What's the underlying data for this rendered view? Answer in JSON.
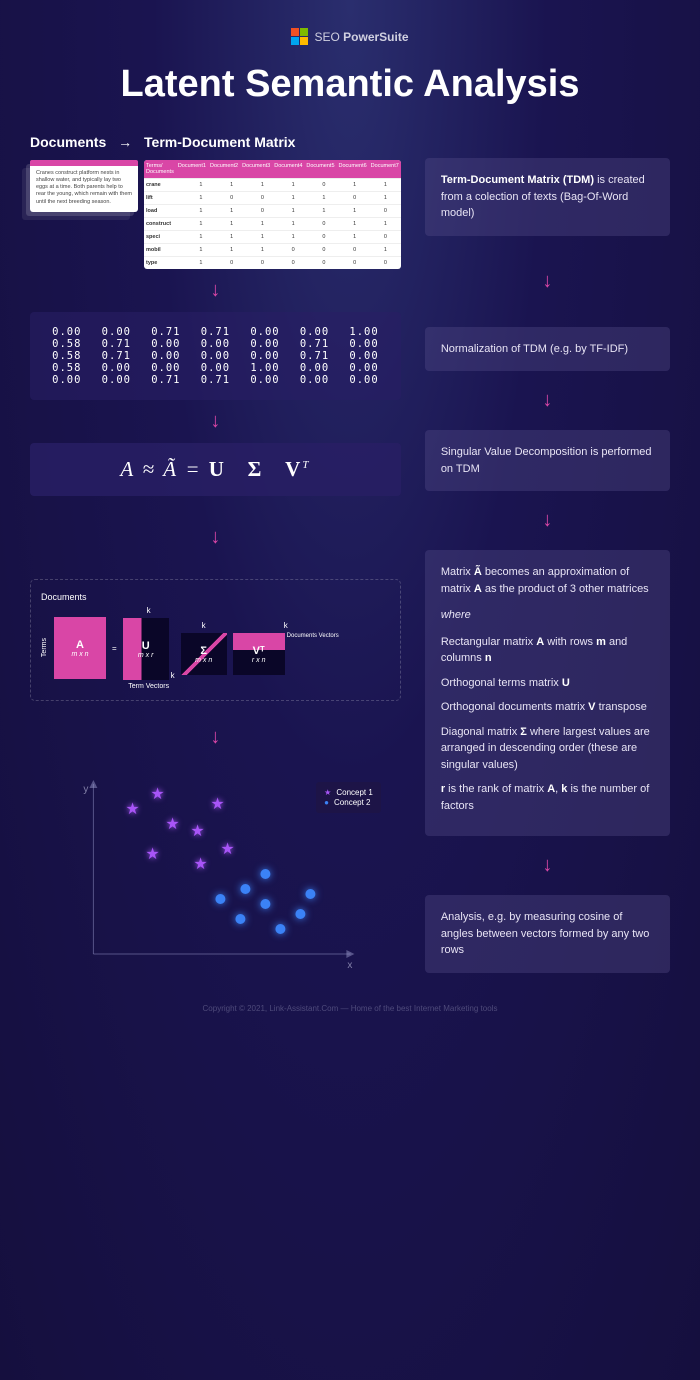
{
  "brand": {
    "seo": "SEO",
    "suite": "PowerSuite",
    "logo_colors": [
      "#f25022",
      "#7fba00",
      "#00a4ef",
      "#ffb900"
    ]
  },
  "title": "Latent Semantic Analysis",
  "subhead": {
    "documents": "Documents",
    "arrow": "→",
    "tdm": "Term-Document Matrix"
  },
  "doc_text": "Cranes construct platform nests in shallow water, and typically lay two eggs at a time. Both parents help to rear the young, which remain with them until the next breeding season.",
  "tdm": {
    "header_label": "Terms/ Documents",
    "cols": [
      "Document1",
      "Document2",
      "Document3",
      "Document4",
      "Document5",
      "Document6",
      "Document7"
    ],
    "rows": [
      {
        "term": "crane",
        "v": [
          "1",
          "1",
          "1",
          "1",
          "0",
          "1",
          "1"
        ]
      },
      {
        "term": "lift",
        "v": [
          "1",
          "0",
          "0",
          "1",
          "1",
          "0",
          "1"
        ]
      },
      {
        "term": "load",
        "v": [
          "1",
          "1",
          "0",
          "1",
          "1",
          "1",
          "0"
        ]
      },
      {
        "term": "construct",
        "v": [
          "1",
          "1",
          "1",
          "1",
          "0",
          "1",
          "1"
        ]
      },
      {
        "term": "speci",
        "v": [
          "1",
          "1",
          "1",
          "1",
          "0",
          "1",
          "0"
        ]
      },
      {
        "term": "mobil",
        "v": [
          "1",
          "1",
          "1",
          "0",
          "0",
          "0",
          "1"
        ]
      },
      {
        "term": "type",
        "v": [
          "1",
          "0",
          "0",
          "0",
          "0",
          "0",
          "0"
        ]
      }
    ]
  },
  "norm": [
    [
      "0.00",
      "0.00",
      "0.71",
      "0.71",
      "0.00",
      "0.00",
      "1.00"
    ],
    [
      "0.58",
      "0.71",
      "0.00",
      "0.00",
      "0.00",
      "0.71",
      "0.00"
    ],
    [
      "0.58",
      "0.71",
      "0.00",
      "0.00",
      "0.00",
      "0.71",
      "0.00"
    ],
    [
      "0.58",
      "0.00",
      "0.00",
      "0.00",
      "1.00",
      "0.00",
      "0.00"
    ],
    [
      "0.00",
      "0.00",
      "0.71",
      "0.71",
      "0.00",
      "0.00",
      "0.00"
    ]
  ],
  "svd": {
    "A": "A",
    "approx": "≈",
    "Ahat": "Ã",
    "eq": "=",
    "U": "U",
    "Sigma": "Σ",
    "V": "V",
    "T": "T"
  },
  "decomp": {
    "documents_label": "Documents",
    "terms_label": "Terms",
    "k": "k",
    "term_vectors": "Term Vectors",
    "documents_vectors": "Documents Vectors",
    "A": {
      "n": "A",
      "d": "m x n"
    },
    "U": {
      "n": "U",
      "d": "m x r"
    },
    "S": {
      "n": "Σ",
      "d": "m x n"
    },
    "V": {
      "n": "Vᵀ",
      "d": "r x n"
    }
  },
  "scatter": {
    "x": "x",
    "y": "y",
    "concept1": "Concept 1",
    "concept2": "Concept 2",
    "color1": "#a855f7",
    "color2": "#3b82f6",
    "stars": [
      [
        60,
        40
      ],
      [
        80,
        85
      ],
      [
        100,
        55
      ],
      [
        85,
        25
      ],
      [
        125,
        62
      ],
      [
        145,
        35
      ],
      [
        128,
        95
      ],
      [
        155,
        80
      ]
    ],
    "circles": [
      [
        155,
        125
      ],
      [
        175,
        145
      ],
      [
        200,
        130
      ],
      [
        180,
        115
      ],
      [
        215,
        155
      ],
      [
        235,
        140
      ],
      [
        200,
        100
      ],
      [
        245,
        120
      ]
    ]
  },
  "info": {
    "b1_bold": "Term-Document Matrix (TDM)",
    "b1_rest": " is created from a colection of texts (Bag-Of-Word model)",
    "b2": "Normalization of TDM (e.g. by TF-IDF)",
    "b3": "Singular Value Decomposition is performed on TDM",
    "b4_l1a": "Matrix ",
    "b4_l1b": "Ã",
    "b4_l1c": " becomes an approximation of matrix ",
    "b4_l1d": "A",
    "b4_l1e": " as the product of 3 other matrices",
    "b4_where": "where",
    "b4_l2a": "Rectangular matrix ",
    "b4_l2b": "A",
    "b4_l2c": " with rows ",
    "b4_l2d": "m",
    "b4_l2e": " and columns ",
    "b4_l2f": "n",
    "b4_l3a": "Orthogonal terms matrix ",
    "b4_l3b": "U",
    "b4_l4a": "Orthogonal documents matrix ",
    "b4_l4b": "V",
    "b4_l4c": " transpose",
    "b4_l5a": "Diagonal matrix ",
    "b4_l5b": "Σ",
    "b4_l5c": " where largest values are arranged in descending order  (these are singular values)",
    "b4_l6a": "r",
    "b4_l6b": " is the rank of matrix ",
    "b4_l6c": "A",
    "b4_l6d": ", ",
    "b4_l6e": "k",
    "b4_l6f": " is the number of factors",
    "b5": "Analysis, e.g. by measuring cosine of angles between vectors formed by any two rows"
  },
  "footer": "Copyright © 2021, Link-Assistant.Com — Home of the best Internet Marketing tools",
  "arrow_color": "#d946a6"
}
